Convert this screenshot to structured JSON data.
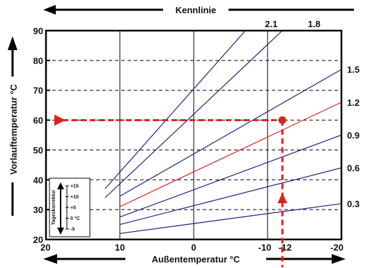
{
  "chart_data": {
    "type": "line",
    "title": "Kennlinie",
    "xlabel": "Außentemperatur °C",
    "ylabel": "Vorlauftemperatur °C",
    "xlim": [
      20,
      -20
    ],
    "ylim": [
      20,
      90
    ],
    "x_ticks": [
      "20",
      "10",
      "0",
      "-10",
      "-12",
      "-20"
    ],
    "x_tick_values": [
      20,
      10,
      0,
      -10,
      -12,
      -20
    ],
    "y_ticks": [
      "20",
      "30",
      "40",
      "50",
      "60",
      "70",
      "80",
      "90"
    ],
    "y_tick_values": [
      20,
      30,
      40,
      50,
      60,
      70,
      80,
      90
    ],
    "grid": "vertical solid at 10, 0, -10; horizontal dashed at 30–80",
    "curve_label_top": [
      "2.1",
      "1.8"
    ],
    "curve_label_right": [
      "1.5",
      "1.2",
      "0.9",
      "0.6",
      "0.3"
    ],
    "series": [
      {
        "name": "0.3",
        "points": [
          [
            10,
            22
          ],
          [
            -20,
            32
          ]
        ]
      },
      {
        "name": "0.6",
        "points": [
          [
            10,
            25
          ],
          [
            -20,
            44
          ]
        ]
      },
      {
        "name": "0.9",
        "points": [
          [
            10,
            27.5
          ],
          [
            -20,
            55
          ]
        ]
      },
      {
        "name": "1.2",
        "points": [
          [
            10,
            31
          ],
          [
            -20,
            66
          ]
        ],
        "highlighted": true
      },
      {
        "name": "1.5",
        "points": [
          [
            10,
            34.5
          ],
          [
            -20,
            77
          ]
        ]
      },
      {
        "name": "1.8",
        "points": [
          [
            12,
            34
          ],
          [
            -12,
            90
          ]
        ]
      },
      {
        "name": "2.1",
        "points": [
          [
            12,
            37
          ],
          [
            -7,
            90
          ]
        ]
      }
    ],
    "highlight_point": {
      "x": -12,
      "y": 60
    },
    "highlight_color": "#e01f1f",
    "line_color": "#1c1f85",
    "inset": {
      "title": "Tageskorrektur",
      "labels": [
        "+15",
        "+10",
        "+5",
        "0 °C",
        "-5"
      ],
      "values": [
        15,
        10,
        5,
        0,
        -5
      ]
    }
  }
}
